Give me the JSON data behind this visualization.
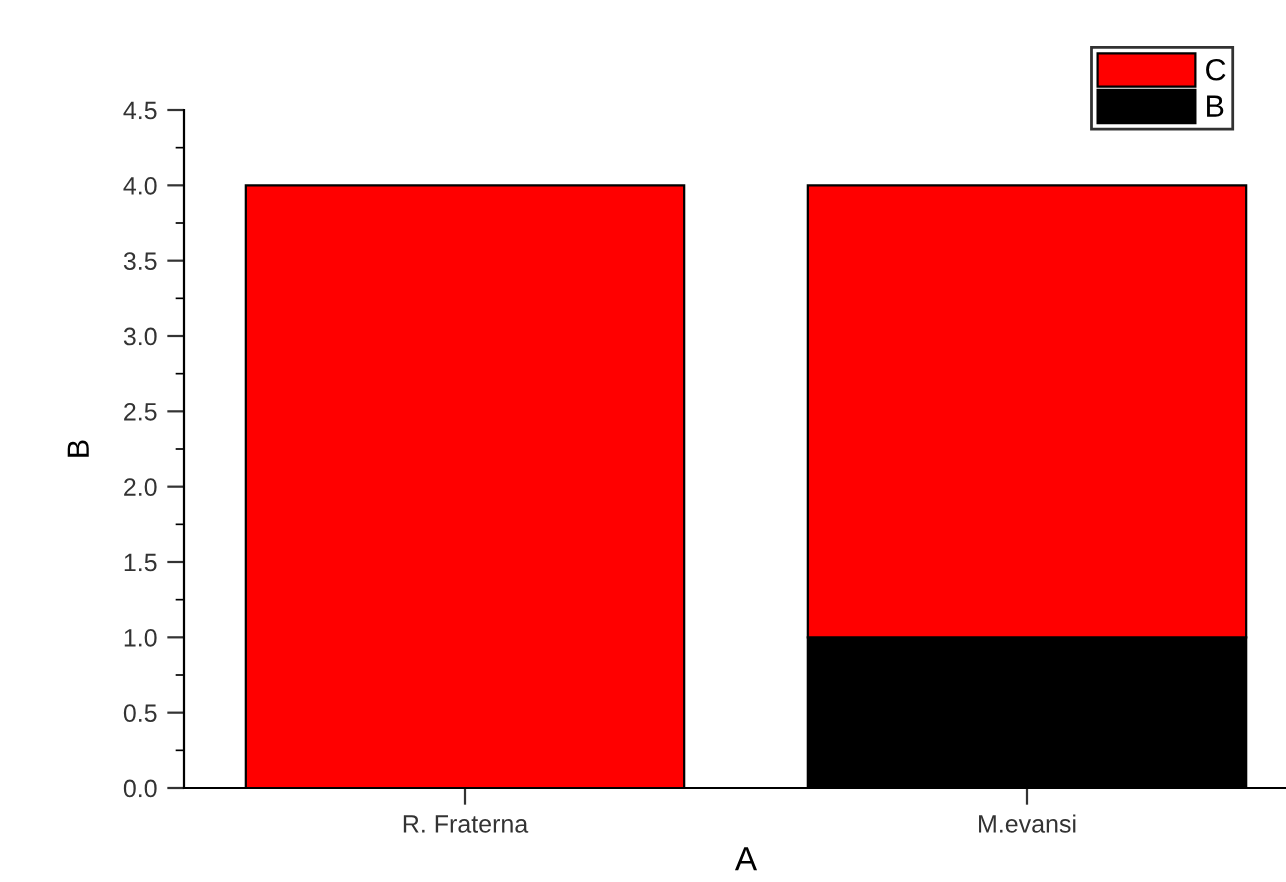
{
  "chart_data": {
    "type": "bar",
    "stacked": true,
    "xlabel": "A",
    "ylabel": "B",
    "categories": [
      "R. Fraterna",
      "M.evansi"
    ],
    "series": [
      {
        "name": "B",
        "color": "#000000",
        "values": [
          0,
          1
        ]
      },
      {
        "name": "C",
        "color": "#ff0000",
        "values": [
          4,
          3
        ]
      }
    ],
    "ylim": [
      0,
      4.5
    ],
    "yticks": [
      {
        "value": 0,
        "label": "0.0"
      },
      {
        "value": 0.5,
        "label": "0.5"
      },
      {
        "value": 1,
        "label": "1.0"
      },
      {
        "value": 1.5,
        "label": "1.5"
      },
      {
        "value": 2,
        "label": "2.0"
      },
      {
        "value": 2.5,
        "label": "2.5"
      },
      {
        "value": 3,
        "label": "3.0"
      },
      {
        "value": 3.5,
        "label": "3.5"
      },
      {
        "value": 4,
        "label": "4.0"
      },
      {
        "value": 4.5,
        "label": "4.5"
      }
    ],
    "grid": false,
    "legend": "top right"
  }
}
